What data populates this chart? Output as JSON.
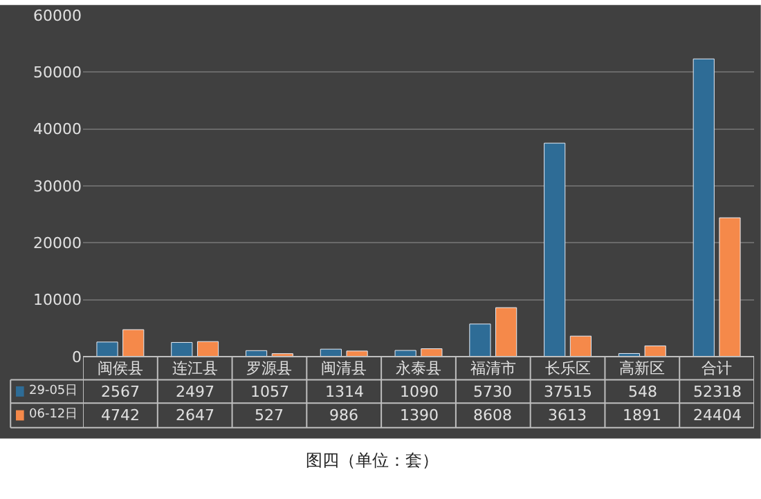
{
  "chart_data": {
    "type": "bar",
    "title": "图四（单位：套）",
    "categories": [
      "闽侯县",
      "连江县",
      "罗源县",
      "闽清县",
      "永泰县",
      "福清市",
      "长乐区",
      "高新区",
      "合计"
    ],
    "series": [
      {
        "name": "29-05日",
        "color": "#2e6c96",
        "values": [
          2567,
          2497,
          1057,
          1314,
          1090,
          5730,
          37515,
          548,
          52318
        ]
      },
      {
        "name": "06-12日",
        "color": "#f5894a",
        "values": [
          4742,
          2647,
          527,
          986,
          1390,
          8608,
          3613,
          1891,
          24404
        ]
      }
    ],
    "ylim": [
      0,
      60000
    ],
    "yticks": [
      0,
      10000,
      20000,
      30000,
      40000,
      50000,
      60000
    ],
    "grid": "y",
    "legend": "bottom left",
    "data_labels": true
  }
}
